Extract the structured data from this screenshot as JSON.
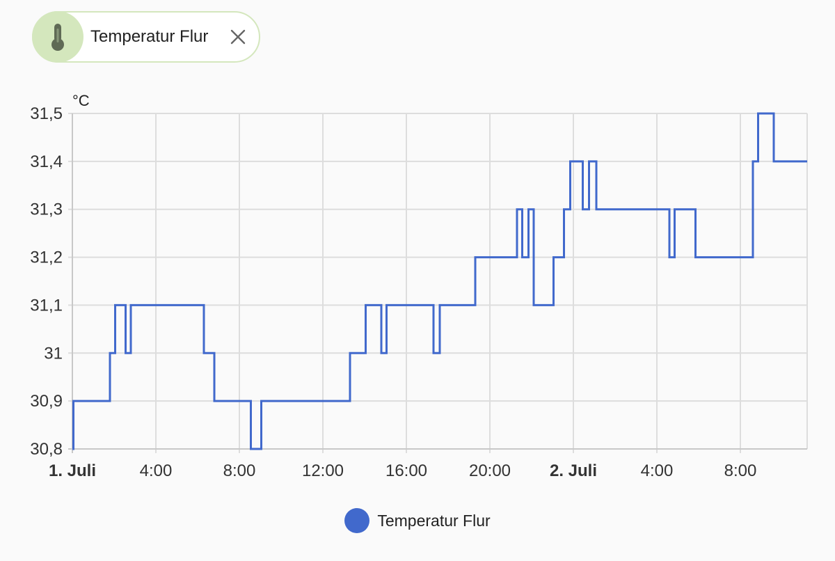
{
  "entity_chip": {
    "label": "Temperatur Flur",
    "icon": "thermometer-icon",
    "close_icon": "close-icon",
    "accent_color": "#d4e7bd",
    "icon_color": "#5f6a55"
  },
  "chart_data": {
    "type": "line",
    "title": "",
    "unit": "°C",
    "xlabel": "",
    "ylabel": "°C",
    "ylim": [
      30.8,
      31.5
    ],
    "xlim": [
      0,
      35.2
    ],
    "x_unit": "hours since 1. Juli 0:00",
    "step": true,
    "grid": true,
    "legend_position": "bottom-center",
    "y_ticks": [
      {
        "value": 30.8,
        "label": "30,8"
      },
      {
        "value": 30.9,
        "label": "30,9"
      },
      {
        "value": 31.0,
        "label": "31"
      },
      {
        "value": 31.1,
        "label": "31,1"
      },
      {
        "value": 31.2,
        "label": "31,2"
      },
      {
        "value": 31.3,
        "label": "31,3"
      },
      {
        "value": 31.4,
        "label": "31,4"
      },
      {
        "value": 31.5,
        "label": "31,5"
      }
    ],
    "x_ticks": [
      {
        "value": 0,
        "label": "1. Juli",
        "bold": true
      },
      {
        "value": 4,
        "label": "4:00",
        "bold": false
      },
      {
        "value": 8,
        "label": "8:00",
        "bold": false
      },
      {
        "value": 12,
        "label": "12:00",
        "bold": false
      },
      {
        "value": 16,
        "label": "16:00",
        "bold": false
      },
      {
        "value": 20,
        "label": "20:00",
        "bold": false
      },
      {
        "value": 24,
        "label": "2. Juli",
        "bold": true
      },
      {
        "value": 28,
        "label": "4:00",
        "bold": false
      },
      {
        "value": 32,
        "label": "8:00",
        "bold": false
      }
    ],
    "series": [
      {
        "name": "Temperatur Flur",
        "color": "#4169cc",
        "x": [
          0,
          0.05,
          1.8,
          2.05,
          2.55,
          2.8,
          6.3,
          6.8,
          8.55,
          9.05,
          13.3,
          14.05,
          14.8,
          15.05,
          17.3,
          17.6,
          19.3,
          21.3,
          21.55,
          21.85,
          22.1,
          23.05,
          23.55,
          23.85,
          24.45,
          24.75,
          25.1,
          28.6,
          28.85,
          29.85,
          32.6,
          32.85,
          33.6,
          35.2
        ],
        "values": [
          30.8,
          30.9,
          31.0,
          31.1,
          31.0,
          31.1,
          31.0,
          30.9,
          30.8,
          30.9,
          31.0,
          31.1,
          31.0,
          31.1,
          31.0,
          31.1,
          31.2,
          31.3,
          31.2,
          31.3,
          31.1,
          31.2,
          31.3,
          31.4,
          31.3,
          31.4,
          31.3,
          31.2,
          31.3,
          31.2,
          31.4,
          31.5,
          31.4,
          31.4
        ]
      }
    ]
  }
}
